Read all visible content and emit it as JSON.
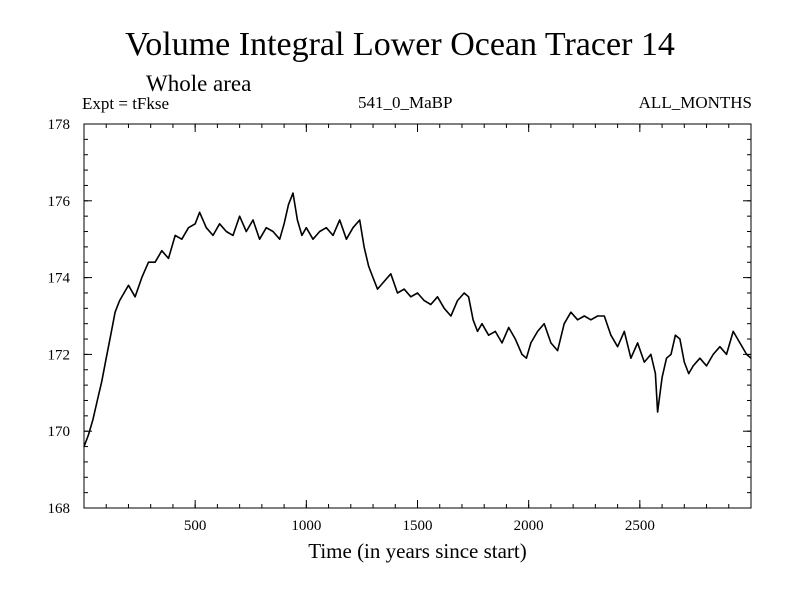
{
  "chart_data": {
    "type": "line",
    "title": "Volume Integral Lower Ocean Tracer 14",
    "subtitle": "Whole area",
    "experiment_label": "Expt = tFkse",
    "center_label": "541_0_MaBP",
    "right_label": "ALL_MONTHS",
    "xlabel": "Time (in years since start)",
    "ylabel": "",
    "xlim": [
      0,
      3000
    ],
    "ylim": [
      168,
      178
    ],
    "x_ticks": [
      500,
      1000,
      1500,
      2000,
      2500
    ],
    "y_ticks": [
      168,
      170,
      172,
      174,
      176,
      178
    ],
    "x_minor_step": 100,
    "y_minor_step": 0.4,
    "grid": false,
    "series": [
      {
        "name": "Lower Ocean Tracer 14",
        "color": "#000000",
        "x": [
          0,
          20,
          40,
          60,
          80,
          100,
          120,
          140,
          160,
          180,
          200,
          230,
          260,
          290,
          320,
          350,
          380,
          410,
          440,
          470,
          500,
          520,
          550,
          580,
          610,
          640,
          670,
          700,
          730,
          760,
          790,
          820,
          850,
          880,
          900,
          920,
          940,
          960,
          980,
          1000,
          1030,
          1060,
          1090,
          1120,
          1150,
          1180,
          1210,
          1240,
          1260,
          1280,
          1300,
          1320,
          1350,
          1380,
          1410,
          1440,
          1470,
          1500,
          1530,
          1560,
          1590,
          1620,
          1650,
          1680,
          1710,
          1730,
          1750,
          1770,
          1790,
          1820,
          1850,
          1880,
          1910,
          1940,
          1970,
          1990,
          2010,
          2040,
          2070,
          2100,
          2130,
          2160,
          2190,
          2220,
          2250,
          2280,
          2310,
          2340,
          2370,
          2400,
          2430,
          2460,
          2490,
          2520,
          2550,
          2570,
          2580,
          2600,
          2620,
          2640,
          2660,
          2680,
          2700,
          2720,
          2740,
          2770,
          2800,
          2830,
          2860,
          2890,
          2920,
          2950,
          2980,
          3000
        ],
        "values": [
          169.6,
          169.9,
          170.3,
          170.8,
          171.3,
          171.9,
          172.5,
          173.1,
          173.4,
          173.6,
          173.8,
          173.5,
          174.0,
          174.4,
          174.4,
          174.7,
          174.5,
          175.1,
          175.0,
          175.3,
          175.4,
          175.7,
          175.3,
          175.1,
          175.4,
          175.2,
          175.1,
          175.6,
          175.2,
          175.5,
          175.0,
          175.3,
          175.2,
          175.0,
          175.4,
          175.9,
          176.2,
          175.5,
          175.1,
          175.3,
          175.0,
          175.2,
          175.3,
          175.1,
          175.5,
          175.0,
          175.3,
          175.5,
          174.8,
          174.3,
          174.0,
          173.7,
          173.9,
          174.1,
          173.6,
          173.7,
          173.5,
          173.6,
          173.4,
          173.3,
          173.5,
          173.2,
          173.0,
          173.4,
          173.6,
          173.5,
          172.9,
          172.6,
          172.8,
          172.5,
          172.6,
          172.3,
          172.7,
          172.4,
          172.0,
          171.9,
          172.3,
          172.6,
          172.8,
          172.3,
          172.1,
          172.8,
          173.1,
          172.9,
          173.0,
          172.9,
          173.0,
          173.0,
          172.5,
          172.2,
          172.6,
          171.9,
          172.3,
          171.8,
          172.0,
          171.5,
          170.5,
          171.4,
          171.9,
          172.0,
          172.5,
          172.4,
          171.8,
          171.5,
          171.7,
          171.9,
          171.7,
          172.0,
          172.2,
          172.0,
          172.6,
          172.3,
          172.0,
          171.9
        ]
      }
    ]
  }
}
